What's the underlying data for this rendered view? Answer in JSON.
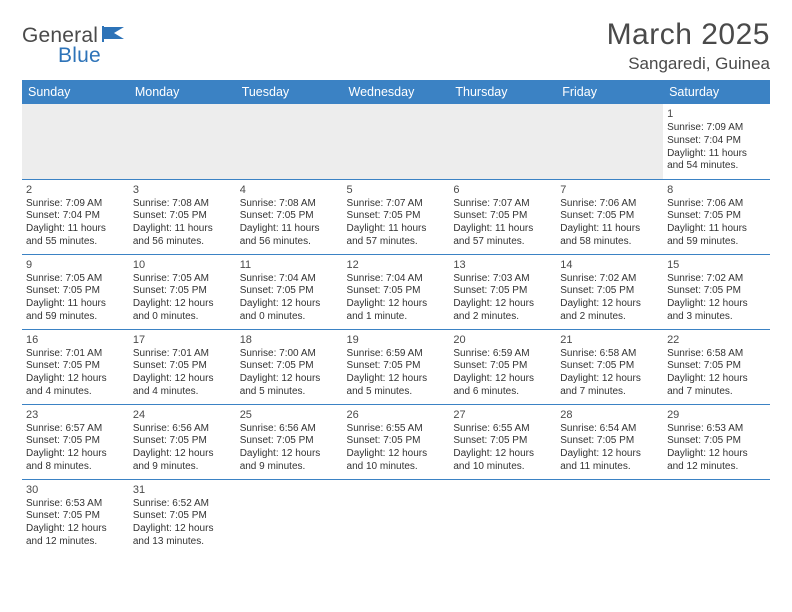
{
  "brand": {
    "part1": "General",
    "part2": "Blue"
  },
  "title": "March 2025",
  "location": "Sangaredi, Guinea",
  "header_bg": "#3b82c4",
  "dayNames": [
    "Sunday",
    "Monday",
    "Tuesday",
    "Wednesday",
    "Thursday",
    "Friday",
    "Saturday"
  ],
  "weeks": [
    [
      null,
      null,
      null,
      null,
      null,
      null,
      {
        "n": "1",
        "sr": "Sunrise: 7:09 AM",
        "ss": "Sunset: 7:04 PM",
        "dl": "Daylight: 11 hours and 54 minutes."
      }
    ],
    [
      {
        "n": "2",
        "sr": "Sunrise: 7:09 AM",
        "ss": "Sunset: 7:04 PM",
        "dl": "Daylight: 11 hours and 55 minutes."
      },
      {
        "n": "3",
        "sr": "Sunrise: 7:08 AM",
        "ss": "Sunset: 7:05 PM",
        "dl": "Daylight: 11 hours and 56 minutes."
      },
      {
        "n": "4",
        "sr": "Sunrise: 7:08 AM",
        "ss": "Sunset: 7:05 PM",
        "dl": "Daylight: 11 hours and 56 minutes."
      },
      {
        "n": "5",
        "sr": "Sunrise: 7:07 AM",
        "ss": "Sunset: 7:05 PM",
        "dl": "Daylight: 11 hours and 57 minutes."
      },
      {
        "n": "6",
        "sr": "Sunrise: 7:07 AM",
        "ss": "Sunset: 7:05 PM",
        "dl": "Daylight: 11 hours and 57 minutes."
      },
      {
        "n": "7",
        "sr": "Sunrise: 7:06 AM",
        "ss": "Sunset: 7:05 PM",
        "dl": "Daylight: 11 hours and 58 minutes."
      },
      {
        "n": "8",
        "sr": "Sunrise: 7:06 AM",
        "ss": "Sunset: 7:05 PM",
        "dl": "Daylight: 11 hours and 59 minutes."
      }
    ],
    [
      {
        "n": "9",
        "sr": "Sunrise: 7:05 AM",
        "ss": "Sunset: 7:05 PM",
        "dl": "Daylight: 11 hours and 59 minutes."
      },
      {
        "n": "10",
        "sr": "Sunrise: 7:05 AM",
        "ss": "Sunset: 7:05 PM",
        "dl": "Daylight: 12 hours and 0 minutes."
      },
      {
        "n": "11",
        "sr": "Sunrise: 7:04 AM",
        "ss": "Sunset: 7:05 PM",
        "dl": "Daylight: 12 hours and 0 minutes."
      },
      {
        "n": "12",
        "sr": "Sunrise: 7:04 AM",
        "ss": "Sunset: 7:05 PM",
        "dl": "Daylight: 12 hours and 1 minute."
      },
      {
        "n": "13",
        "sr": "Sunrise: 7:03 AM",
        "ss": "Sunset: 7:05 PM",
        "dl": "Daylight: 12 hours and 2 minutes."
      },
      {
        "n": "14",
        "sr": "Sunrise: 7:02 AM",
        "ss": "Sunset: 7:05 PM",
        "dl": "Daylight: 12 hours and 2 minutes."
      },
      {
        "n": "15",
        "sr": "Sunrise: 7:02 AM",
        "ss": "Sunset: 7:05 PM",
        "dl": "Daylight: 12 hours and 3 minutes."
      }
    ],
    [
      {
        "n": "16",
        "sr": "Sunrise: 7:01 AM",
        "ss": "Sunset: 7:05 PM",
        "dl": "Daylight: 12 hours and 4 minutes."
      },
      {
        "n": "17",
        "sr": "Sunrise: 7:01 AM",
        "ss": "Sunset: 7:05 PM",
        "dl": "Daylight: 12 hours and 4 minutes."
      },
      {
        "n": "18",
        "sr": "Sunrise: 7:00 AM",
        "ss": "Sunset: 7:05 PM",
        "dl": "Daylight: 12 hours and 5 minutes."
      },
      {
        "n": "19",
        "sr": "Sunrise: 6:59 AM",
        "ss": "Sunset: 7:05 PM",
        "dl": "Daylight: 12 hours and 5 minutes."
      },
      {
        "n": "20",
        "sr": "Sunrise: 6:59 AM",
        "ss": "Sunset: 7:05 PM",
        "dl": "Daylight: 12 hours and 6 minutes."
      },
      {
        "n": "21",
        "sr": "Sunrise: 6:58 AM",
        "ss": "Sunset: 7:05 PM",
        "dl": "Daylight: 12 hours and 7 minutes."
      },
      {
        "n": "22",
        "sr": "Sunrise: 6:58 AM",
        "ss": "Sunset: 7:05 PM",
        "dl": "Daylight: 12 hours and 7 minutes."
      }
    ],
    [
      {
        "n": "23",
        "sr": "Sunrise: 6:57 AM",
        "ss": "Sunset: 7:05 PM",
        "dl": "Daylight: 12 hours and 8 minutes."
      },
      {
        "n": "24",
        "sr": "Sunrise: 6:56 AM",
        "ss": "Sunset: 7:05 PM",
        "dl": "Daylight: 12 hours and 9 minutes."
      },
      {
        "n": "25",
        "sr": "Sunrise: 6:56 AM",
        "ss": "Sunset: 7:05 PM",
        "dl": "Daylight: 12 hours and 9 minutes."
      },
      {
        "n": "26",
        "sr": "Sunrise: 6:55 AM",
        "ss": "Sunset: 7:05 PM",
        "dl": "Daylight: 12 hours and 10 minutes."
      },
      {
        "n": "27",
        "sr": "Sunrise: 6:55 AM",
        "ss": "Sunset: 7:05 PM",
        "dl": "Daylight: 12 hours and 10 minutes."
      },
      {
        "n": "28",
        "sr": "Sunrise: 6:54 AM",
        "ss": "Sunset: 7:05 PM",
        "dl": "Daylight: 12 hours and 11 minutes."
      },
      {
        "n": "29",
        "sr": "Sunrise: 6:53 AM",
        "ss": "Sunset: 7:05 PM",
        "dl": "Daylight: 12 hours and 12 minutes."
      }
    ],
    [
      {
        "n": "30",
        "sr": "Sunrise: 6:53 AM",
        "ss": "Sunset: 7:05 PM",
        "dl": "Daylight: 12 hours and 12 minutes."
      },
      {
        "n": "31",
        "sr": "Sunrise: 6:52 AM",
        "ss": "Sunset: 7:05 PM",
        "dl": "Daylight: 12 hours and 13 minutes."
      },
      null,
      null,
      null,
      null,
      null
    ]
  ]
}
